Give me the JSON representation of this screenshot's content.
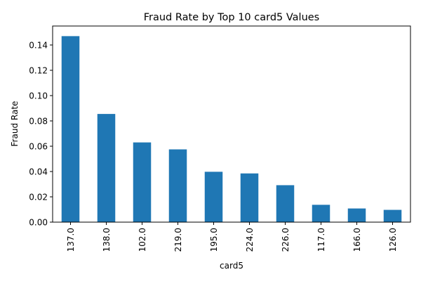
{
  "chart_data": {
    "type": "bar",
    "title": "Fraud Rate by Top 10 card5 Values",
    "xlabel": "card5",
    "ylabel": "Fraud Rate",
    "categories": [
      "137.0",
      "138.0",
      "102.0",
      "219.0",
      "195.0",
      "224.0",
      "226.0",
      "117.0",
      "166.0",
      "126.0"
    ],
    "values": [
      0.147,
      0.0855,
      0.063,
      0.0575,
      0.0398,
      0.0385,
      0.0292,
      0.0137,
      0.0108,
      0.0097
    ],
    "ylim": [
      0,
      0.155
    ],
    "yticks": [
      0.0,
      0.02,
      0.04,
      0.06,
      0.08,
      0.1,
      0.12,
      0.14
    ],
    "ytick_labels": [
      "0.00",
      "0.02",
      "0.04",
      "0.06",
      "0.08",
      "0.10",
      "0.12",
      "0.14"
    ],
    "grid": false,
    "legend": "none",
    "bar_color": "#1f77b4"
  }
}
